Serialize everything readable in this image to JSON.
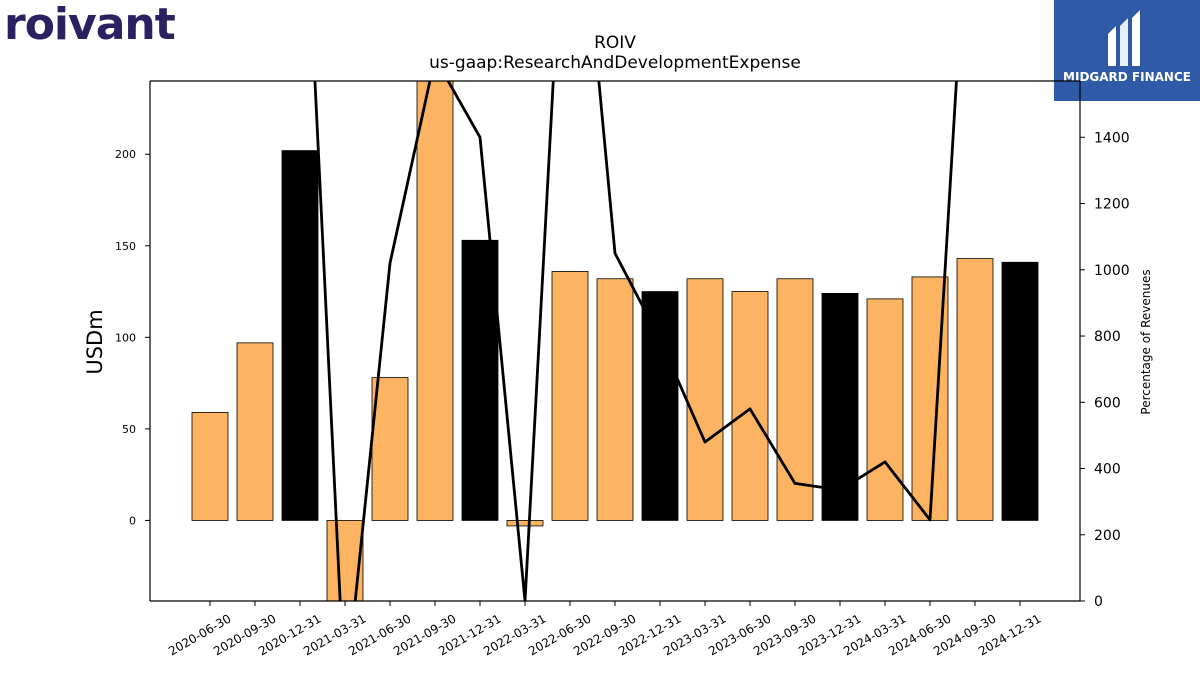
{
  "logos": {
    "left": "roivant",
    "right": "MIDGARD FINANCE"
  },
  "chart_data": {
    "type": "bar",
    "title": "ROIV",
    "subtitle": "us-gaap:ResearchAndDevelopmentExpense",
    "ylabel": "USDm",
    "y2label": "Percentage of Revenues",
    "ylim": [
      -44,
      240
    ],
    "y2lim": [
      0,
      1570
    ],
    "yticks": [
      0,
      50,
      100,
      150,
      200
    ],
    "y2ticks": [
      0,
      200,
      400,
      600,
      800,
      1000,
      1200,
      1400
    ],
    "categories": [
      "2020-06-30",
      "2020-09-30",
      "2020-12-31",
      "2021-03-31",
      "2021-06-30",
      "2021-09-30",
      "2021-12-31",
      "2022-03-31",
      "2022-06-30",
      "2022-09-30",
      "2022-12-31",
      "2023-03-31",
      "2023-06-30",
      "2023-09-30",
      "2023-12-31",
      "2024-03-31",
      "2024-06-30",
      "2024-09-30",
      "2024-12-31"
    ],
    "values": [
      59,
      97,
      202,
      -44,
      78,
      245,
      153,
      -3,
      136,
      132,
      125,
      132,
      125,
      132,
      124,
      121,
      133,
      143,
      141
    ],
    "bar_colors": [
      "#fdb462",
      "#fdb462",
      "#000000",
      "#fdb462",
      "#fdb462",
      "#fdb462",
      "#000000",
      "#fdb462",
      "#fdb462",
      "#fdb462",
      "#000000",
      "#fdb462",
      "#fdb462",
      "#fdb462",
      "#000000",
      "#fdb462",
      "#fdb462",
      "#fdb462",
      "#000000"
    ],
    "line_series": {
      "values": [
        null,
        null,
        2500,
        -300,
        1020,
        1640,
        1400,
        0,
        2500,
        1050,
        790,
        480,
        580,
        355,
        335,
        420,
        245,
        2500,
        null
      ]
    }
  }
}
